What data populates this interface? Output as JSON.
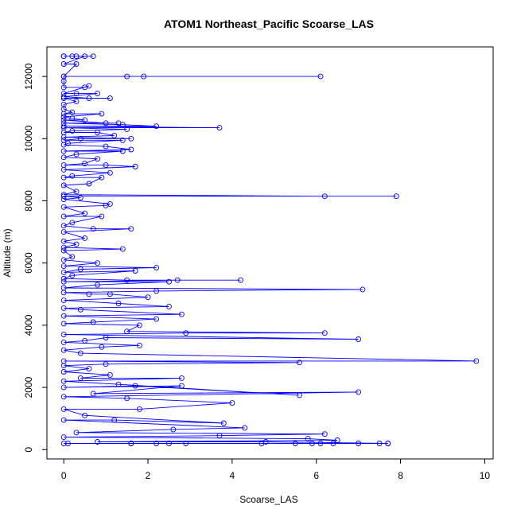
{
  "chart_data": {
    "type": "line",
    "title": "ATOM1 Northeast_Pacific Scoarse_LAS",
    "xlabel": "Scoarse_LAS",
    "ylabel": "Altitude (m)",
    "xlim": [
      -0.4,
      10.2
    ],
    "ylim": [
      -300,
      12950
    ],
    "x_ticks": [
      0,
      2,
      4,
      6,
      8,
      10
    ],
    "y_ticks": [
      0,
      2000,
      4000,
      6000,
      8000,
      10000,
      12000
    ],
    "color": "#0000ff",
    "markers": "open-circle",
    "series": [
      {
        "points": [
          [
            0.0,
            12650
          ],
          [
            0.2,
            12650
          ],
          [
            0.3,
            12650
          ],
          [
            0.7,
            12650
          ],
          [
            0.0,
            12650
          ],
          [
            0.5,
            12650
          ],
          [
            0.0,
            12400
          ],
          [
            0.3,
            12400
          ],
          [
            0.0,
            12000
          ],
          [
            1.5,
            12000
          ],
          [
            1.9,
            12000
          ],
          [
            6.1,
            12000
          ],
          [
            0.0,
            12000
          ],
          [
            0.0,
            11850
          ],
          [
            0.0,
            11650
          ],
          [
            0.5,
            11650
          ],
          [
            0.6,
            11700
          ],
          [
            0.0,
            11450
          ],
          [
            0.3,
            11450
          ],
          [
            0.8,
            11450
          ],
          [
            0.0,
            11350
          ],
          [
            0.6,
            11300
          ],
          [
            1.1,
            11300
          ],
          [
            0.0,
            11300
          ],
          [
            0.3,
            11200
          ],
          [
            0.0,
            11100
          ],
          [
            0.0,
            10950
          ],
          [
            0.2,
            10850
          ],
          [
            0.0,
            10800
          ],
          [
            0.9,
            10800
          ],
          [
            0.0,
            10700
          ],
          [
            0.2,
            10650
          ],
          [
            0.5,
            10600
          ],
          [
            0.0,
            10600
          ],
          [
            1.0,
            10500
          ],
          [
            1.3,
            10500
          ],
          [
            0.0,
            10500
          ],
          [
            1.4,
            10450
          ],
          [
            2.2,
            10400
          ],
          [
            0.0,
            10400
          ],
          [
            3.7,
            10350
          ],
          [
            0.0,
            10350
          ],
          [
            1.5,
            10300
          ],
          [
            0.2,
            10250
          ],
          [
            0.0,
            10200
          ],
          [
            0.8,
            10200
          ],
          [
            1.2,
            10100
          ],
          [
            0.0,
            10050
          ],
          [
            1.6,
            10000
          ],
          [
            0.4,
            10000
          ],
          [
            0.0,
            9950
          ],
          [
            1.4,
            9950
          ],
          [
            0.1,
            9850
          ],
          [
            0.0,
            9800
          ],
          [
            1.0,
            9750
          ],
          [
            1.6,
            9650
          ],
          [
            0.0,
            9600
          ],
          [
            1.4,
            9600
          ],
          [
            0.3,
            9500
          ],
          [
            0.0,
            9400
          ],
          [
            0.8,
            9350
          ],
          [
            0.5,
            9200
          ],
          [
            0.0,
            9150
          ],
          [
            1.0,
            9150
          ],
          [
            1.7,
            9100
          ],
          [
            0.0,
            9000
          ],
          [
            1.1,
            8900
          ],
          [
            0.2,
            8800
          ],
          [
            0.0,
            8750
          ],
          [
            0.9,
            8750
          ],
          [
            0.6,
            8550
          ],
          [
            0.0,
            8500
          ],
          [
            0.3,
            8300
          ],
          [
            0.0,
            8200
          ],
          [
            6.2,
            8150
          ],
          [
            7.9,
            8150
          ],
          [
            0.0,
            8150
          ],
          [
            0.4,
            8100
          ],
          [
            0.0,
            8050
          ],
          [
            1.1,
            7900
          ],
          [
            1.0,
            7850
          ],
          [
            0.0,
            7800
          ],
          [
            0.5,
            7600
          ],
          [
            0.0,
            7500
          ],
          [
            0.9,
            7500
          ],
          [
            0.2,
            7300
          ],
          [
            0.0,
            7200
          ],
          [
            0.7,
            7100
          ],
          [
            1.6,
            7100
          ],
          [
            0.0,
            7000
          ],
          [
            0.5,
            6800
          ],
          [
            0.0,
            6700
          ],
          [
            0.3,
            6600
          ],
          [
            0.0,
            6500
          ],
          [
            1.4,
            6450
          ],
          [
            0.0,
            6400
          ],
          [
            0.2,
            6200
          ],
          [
            0.0,
            6100
          ],
          [
            0.8,
            6000
          ],
          [
            0.0,
            5900
          ],
          [
            2.2,
            5850
          ],
          [
            0.4,
            5800
          ],
          [
            0.0,
            5700
          ],
          [
            1.7,
            5750
          ],
          [
            0.2,
            5600
          ],
          [
            0.0,
            5500
          ],
          [
            1.5,
            5450
          ],
          [
            4.2,
            5450
          ],
          [
            2.7,
            5450
          ],
          [
            0.0,
            5400
          ],
          [
            2.5,
            5400
          ],
          [
            0.8,
            5300
          ],
          [
            0.0,
            5200
          ],
          [
            7.1,
            5150
          ],
          [
            2.2,
            5100
          ],
          [
            0.0,
            5050
          ],
          [
            0.6,
            5000
          ],
          [
            1.1,
            5000
          ],
          [
            2.0,
            4900
          ],
          [
            0.0,
            4800
          ],
          [
            1.3,
            4700
          ],
          [
            2.5,
            4600
          ],
          [
            0.0,
            4550
          ],
          [
            0.4,
            4500
          ],
          [
            2.8,
            4350
          ],
          [
            0.0,
            4300
          ],
          [
            2.2,
            4200
          ],
          [
            0.7,
            4100
          ],
          [
            0.0,
            4050
          ],
          [
            1.8,
            4000
          ],
          [
            1.5,
            3800
          ],
          [
            6.2,
            3750
          ],
          [
            2.9,
            3750
          ],
          [
            0.0,
            3700
          ],
          [
            7.0,
            3550
          ],
          [
            1.0,
            3600
          ],
          [
            0.5,
            3500
          ],
          [
            0.0,
            3450
          ],
          [
            1.8,
            3350
          ],
          [
            0.9,
            3300
          ],
          [
            0.0,
            3200
          ],
          [
            0.4,
            3100
          ],
          [
            9.8,
            2850
          ],
          [
            0.0,
            2850
          ],
          [
            5.6,
            2800
          ],
          [
            1.0,
            2750
          ],
          [
            0.0,
            2700
          ],
          [
            0.6,
            2600
          ],
          [
            0.0,
            2500
          ],
          [
            1.1,
            2400
          ],
          [
            0.4,
            2300
          ],
          [
            2.8,
            2300
          ],
          [
            0.0,
            2200
          ],
          [
            1.3,
            2100
          ],
          [
            5.6,
            1750
          ],
          [
            1.7,
            2050
          ],
          [
            0.0,
            2000
          ],
          [
            2.8,
            2050
          ],
          [
            0.7,
            1800
          ],
          [
            7.0,
            1850
          ],
          [
            0.0,
            1700
          ],
          [
            1.5,
            1650
          ],
          [
            4.0,
            1500
          ],
          [
            1.8,
            1300
          ],
          [
            0.0,
            1300
          ],
          [
            0.5,
            1100
          ],
          [
            3.8,
            850
          ],
          [
            1.2,
            950
          ],
          [
            0.0,
            950
          ],
          [
            4.3,
            700
          ],
          [
            2.6,
            650
          ],
          [
            0.3,
            550
          ],
          [
            6.2,
            500
          ],
          [
            3.7,
            450
          ],
          [
            0.0,
            400
          ],
          [
            5.8,
            350
          ],
          [
            6.5,
            300
          ],
          [
            0.8,
            250
          ],
          [
            4.8,
            250
          ],
          [
            7.7,
            200
          ],
          [
            1.6,
            200
          ],
          [
            5.5,
            200
          ],
          [
            0.0,
            200
          ],
          [
            7.5,
            200
          ],
          [
            2.2,
            200
          ],
          [
            6.4,
            200
          ],
          [
            0.1,
            200
          ],
          [
            5.9,
            200
          ],
          [
            2.9,
            200
          ],
          [
            7.7,
            200
          ],
          [
            2.5,
            200
          ],
          [
            4.7,
            200
          ],
          [
            1.6,
            200
          ],
          [
            7.0,
            200
          ],
          [
            6.1,
            200
          ]
        ]
      }
    ]
  }
}
